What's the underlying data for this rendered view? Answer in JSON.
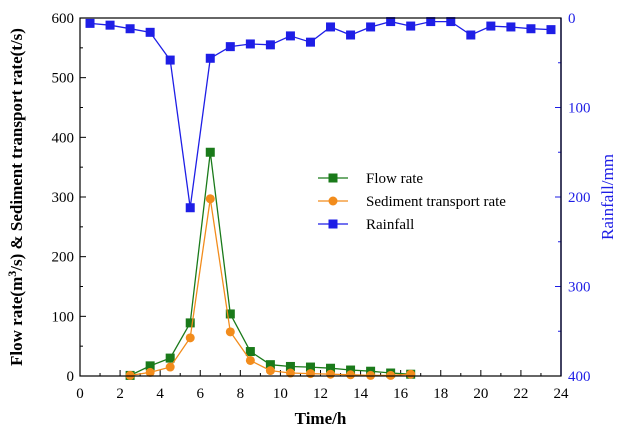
{
  "chart_data": {
    "type": "line",
    "xlabel": "Time/h",
    "ylabel_left_parts": [
      "Flow rate(m",
      "3",
      "/s) & Sediment transport rate(t/s)"
    ],
    "ylabel_right": "Rainfall/mm",
    "xlim": [
      0,
      24
    ],
    "ylim_left": [
      0,
      600
    ],
    "ylim_right": [
      0,
      400
    ],
    "right_axis_inverted": true,
    "x_ticks": [
      "0",
      "2",
      "4",
      "6",
      "8",
      "10",
      "12",
      "14",
      "16",
      "18",
      "20",
      "22",
      "24"
    ],
    "y_left_ticks": [
      "0",
      "100",
      "200",
      "300",
      "400",
      "500",
      "600"
    ],
    "y_right_ticks": [
      "0",
      "100",
      "200",
      "300",
      "400"
    ],
    "legend_position": "center-right",
    "colors": {
      "flow": "#1a7a1a",
      "sediment": "#f28c1c",
      "rainfall": "#1e1ee6",
      "axis_right": "#1e1ee6"
    },
    "series": [
      {
        "name": "Flow rate",
        "axis": "left",
        "marker": "square",
        "x": [
          2.5,
          3.5,
          4.5,
          5.5,
          6.5,
          7.5,
          8.5,
          9.5,
          10.5,
          11.5,
          12.5,
          13.5,
          14.5,
          15.5,
          16.5
        ],
        "y": [
          1,
          17,
          30,
          89,
          375,
          104,
          41,
          19,
          16,
          15,
          13,
          10,
          8,
          5,
          3
        ]
      },
      {
        "name": "Sediment transport rate",
        "axis": "left",
        "marker": "circle",
        "x": [
          2.5,
          3.5,
          4.5,
          5.5,
          6.5,
          7.5,
          8.5,
          9.5,
          10.5,
          11.5,
          12.5,
          13.5,
          14.5,
          15.5,
          16.5
        ],
        "y": [
          1,
          6,
          15,
          64,
          297,
          74,
          26,
          9,
          5,
          4,
          3,
          2,
          1,
          1,
          3
        ]
      },
      {
        "name": "Rainfall",
        "axis": "right",
        "marker": "square",
        "x": [
          0.5,
          1.5,
          2.5,
          3.5,
          4.5,
          5.5,
          6.5,
          7.5,
          8.5,
          9.5,
          10.5,
          11.5,
          12.5,
          13.5,
          14.5,
          15.5,
          16.5,
          17.5,
          18.5,
          19.5,
          20.5,
          21.5,
          22.5,
          23.5
        ],
        "y": [
          6,
          8,
          12,
          16,
          47,
          212,
          45,
          32,
          29,
          30,
          20,
          27,
          10,
          19,
          10,
          4,
          9,
          4,
          4,
          19,
          9,
          10,
          12,
          13
        ]
      }
    ]
  }
}
